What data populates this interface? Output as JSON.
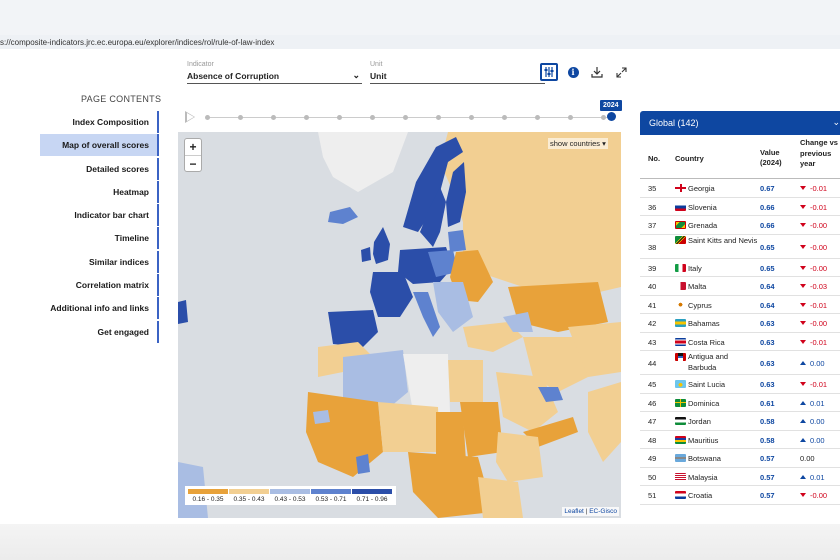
{
  "browser": {
    "url": "s://composite-indicators.jrc.ec.europa.eu/explorer/indices/rol/rule-of-law-index"
  },
  "selectors": {
    "indicator": {
      "label": "Indicator",
      "value": "Absence of Corruption"
    },
    "unit": {
      "label": "Unit",
      "value": "Unit"
    }
  },
  "toolbar": {
    "icons": [
      "sliders-icon",
      "info-icon",
      "download-icon",
      "expand-icon"
    ],
    "info_glyph": "i"
  },
  "toc": {
    "title": "PAGE CONTENTS",
    "items": [
      "Index Composition",
      "Map of overall scores",
      "Detailed scores",
      "Heatmap",
      "Indicator bar chart",
      "Timeline",
      "Similar indices",
      "Correlation matrix",
      "Additional info and links",
      "Get engaged"
    ],
    "active_index": 1
  },
  "timeline": {
    "year": "2024"
  },
  "map": {
    "zoom_in": "+",
    "zoom_out": "−",
    "show_countries": "show countries",
    "legend": [
      {
        "range": "0.16 - 0.35",
        "color": "#e8a23a"
      },
      {
        "range": "0.35 - 0.43",
        "color": "#f2cf92"
      },
      {
        "range": "0.43 - 0.53",
        "color": "#a9bde3"
      },
      {
        "range": "0.53 - 0.71",
        "color": "#5e82cf"
      },
      {
        "range": "0.71 - 0.96",
        "color": "#2b4ea9"
      }
    ],
    "attribution_left": "Leaflet",
    "attribution_sep": " | ",
    "attribution_right": "EC-Gisco"
  },
  "ranking": {
    "title": "Global (142)",
    "columns": {
      "no": "No.",
      "country": "Country",
      "value": "Value (2024)",
      "change": "Change vs previous year"
    },
    "rows": [
      {
        "no": "35",
        "country": "Georgia",
        "value": "0.67",
        "change": "-0.01",
        "dir": "down",
        "flag": "georgia"
      },
      {
        "no": "36",
        "country": "Slovenia",
        "value": "0.66",
        "change": "-0.01",
        "dir": "down",
        "flag": "slovenia"
      },
      {
        "no": "37",
        "country": "Grenada",
        "value": "0.66",
        "change": "-0.00",
        "dir": "down",
        "flag": "grenada"
      },
      {
        "no": "38",
        "country": "Saint Kitts and Nevis",
        "value": "0.65",
        "change": "-0.00",
        "dir": "down",
        "flag": "skn"
      },
      {
        "no": "39",
        "country": "Italy",
        "value": "0.65",
        "change": "-0.00",
        "dir": "down",
        "flag": "italy"
      },
      {
        "no": "40",
        "country": "Malta",
        "value": "0.64",
        "change": "-0.03",
        "dir": "down",
        "flag": "malta"
      },
      {
        "no": "41",
        "country": "Cyprus",
        "value": "0.64",
        "change": "-0.01",
        "dir": "down",
        "flag": "cyprus"
      },
      {
        "no": "42",
        "country": "Bahamas",
        "value": "0.63",
        "change": "-0.00",
        "dir": "down",
        "flag": "bahamas"
      },
      {
        "no": "43",
        "country": "Costa Rica",
        "value": "0.63",
        "change": "-0.01",
        "dir": "down",
        "flag": "costarica"
      },
      {
        "no": "44",
        "country": "Antigua and Barbuda",
        "value": "0.63",
        "change": "0.00",
        "dir": "up",
        "flag": "antigua"
      },
      {
        "no": "45",
        "country": "Saint Lucia",
        "value": "0.63",
        "change": "-0.01",
        "dir": "down",
        "flag": "stlucia"
      },
      {
        "no": "46",
        "country": "Dominica",
        "value": "0.61",
        "change": "0.01",
        "dir": "up",
        "flag": "dominica"
      },
      {
        "no": "47",
        "country": "Jordan",
        "value": "0.58",
        "change": "0.00",
        "dir": "up",
        "flag": "jordan"
      },
      {
        "no": "48",
        "country": "Mauritius",
        "value": "0.58",
        "change": "0.00",
        "dir": "up",
        "flag": "mauritius"
      },
      {
        "no": "49",
        "country": "Botswana",
        "value": "0.57",
        "change": "0.00",
        "dir": "flat",
        "flag": "botswana"
      },
      {
        "no": "50",
        "country": "Malaysia",
        "value": "0.57",
        "change": "0.01",
        "dir": "up",
        "flag": "malaysia"
      },
      {
        "no": "51",
        "country": "Croatia",
        "value": "0.57",
        "change": "-0.00",
        "dir": "down",
        "flag": "croatia"
      }
    ]
  },
  "colors": {
    "accent": "#0e47a1",
    "negative": "#d0021b",
    "no_data": "#eeeeee",
    "background_land": "#c9ccd1"
  }
}
